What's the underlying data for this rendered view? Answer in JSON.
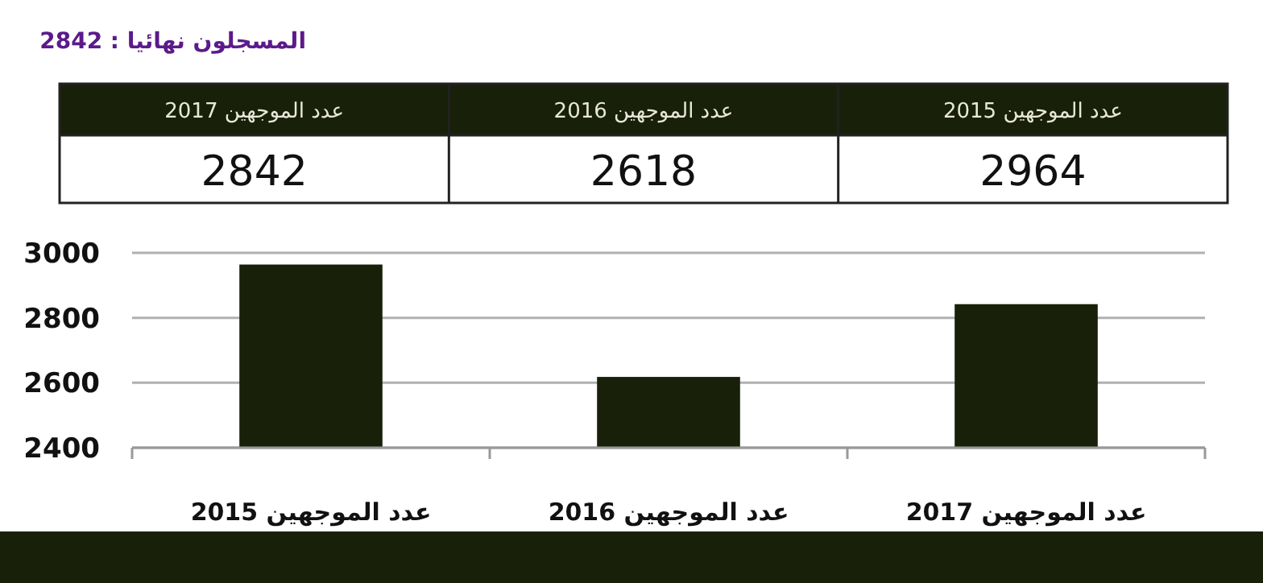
{
  "chart_data": [
    {
      "type": "other",
      "title": "المسجلون نهائيا : 2842",
      "annotations": [
        "عدد الموجهين 2015",
        "2964",
        "عدد الموجهين 2016",
        "2618",
        "عدد الموجهين 2017",
        "2842"
      ],
      "color": "#19200a"
    },
    {
      "type": "bar",
      "categories": [
        "عدد الموجهين 2015",
        "عدد الموجهين 2016",
        "عدد الموجهين 2017"
      ],
      "values": [
        2964,
        2618,
        2842
      ],
      "color": "#19200a",
      "ylim": [
        2400,
        3000
      ],
      "yticks": [
        2400,
        2600,
        2800,
        3000
      ],
      "grid": "y"
    }
  ]
}
